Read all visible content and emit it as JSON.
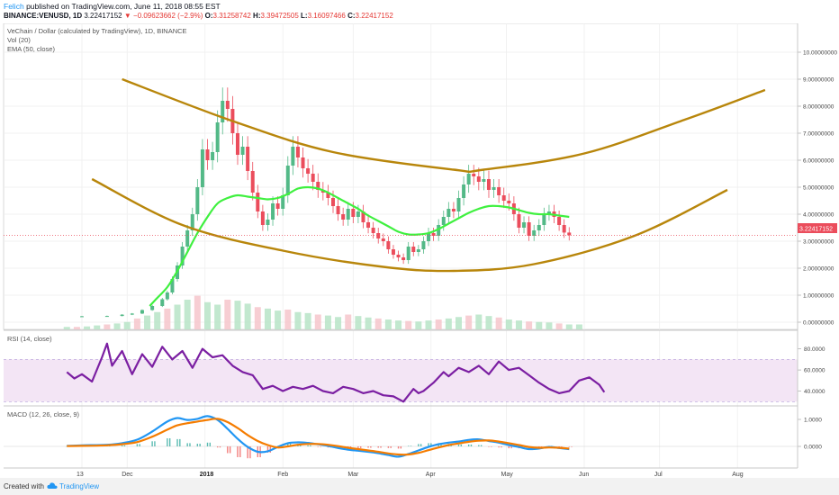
{
  "header": {
    "author": "Felich",
    "published": "published on TradingView.com, June 11, 2018 08:55 EST",
    "symbol": "BINANCE:VENUSD, 1D",
    "last": "3.22417152",
    "change": "−0.09623662 (−2.9%)",
    "o_label": "O:",
    "o_value": "3.31258742",
    "h_label": "H:",
    "h_value": "3.39472505",
    "l_label": "L:",
    "l_value": "3.16097466",
    "c_label": "C:",
    "c_value": "3.22417152"
  },
  "legend": {
    "title": "VeChain / Dollar (calculated by TradingView), 1D, BINANCE",
    "vol": "Vol (20)",
    "ema": "EMA (50, close)",
    "rsi": "RSI (14, close)",
    "macd": "MACD (12, 26, close, 9)"
  },
  "price_label": "3.22417152",
  "footer": {
    "created": "Created with",
    "brand": "TradingView"
  },
  "colors": {
    "up": "#53b987",
    "down": "#eb4d5c",
    "ema": "#3ff03f",
    "channel": "#b8860b",
    "rsi": "#7b1fa2",
    "rsi_band": "#f3e5f5",
    "macd": "#2196f3",
    "signal": "#f57c00",
    "hist_up": "#26a69a",
    "hist_down": "#ef5350"
  },
  "chart_data": [
    {
      "type": "line",
      "panel": "price",
      "y_ticks": [
        "10.00000000",
        "9.00000000",
        "8.00000000",
        "7.00000000",
        "6.00000000",
        "5.00000000",
        "4.00000000",
        "3.00000000",
        "2.00000000",
        "1.00000000",
        "0.00000000"
      ],
      "ylim": [
        0,
        10
      ],
      "x_ticks": [
        {
          "day": 0,
          "label": "13",
          "bold": false
        },
        {
          "day": 18,
          "label": "Dec",
          "bold": false
        },
        {
          "day": 49,
          "label": "2018",
          "bold": true
        },
        {
          "day": 80,
          "label": "Feb",
          "bold": false
        },
        {
          "day": 108,
          "label": "Mar",
          "bold": false
        },
        {
          "day": 139,
          "label": "Apr",
          "bold": false
        },
        {
          "day": 169,
          "label": "May",
          "bold": false
        },
        {
          "day": 200,
          "label": "Jun",
          "bold": false
        },
        {
          "day": 230,
          "label": "Jul",
          "bold": false
        },
        {
          "day": 261,
          "label": "Aug",
          "bold": false
        }
      ],
      "close_series": [
        [
          -6,
          0.22
        ],
        [
          0,
          0.22
        ],
        [
          10,
          0.23
        ],
        [
          16,
          0.28
        ],
        [
          20,
          0.32
        ],
        [
          24,
          0.45
        ],
        [
          28,
          0.6
        ],
        [
          32,
          0.85
        ],
        [
          34,
          1.1
        ],
        [
          36,
          1.6
        ],
        [
          38,
          2.1
        ],
        [
          40,
          2.8
        ],
        [
          42,
          3.4
        ],
        [
          44,
          4.0
        ],
        [
          46,
          5.0
        ],
        [
          48,
          6.4
        ],
        [
          50,
          6.0
        ],
        [
          52,
          6.3
        ],
        [
          54,
          7.4
        ],
        [
          56,
          8.2
        ],
        [
          58,
          7.9
        ],
        [
          60,
          7.0
        ],
        [
          62,
          6.2
        ],
        [
          64,
          6.5
        ],
        [
          66,
          5.6
        ],
        [
          68,
          4.8
        ],
        [
          70,
          4.1
        ],
        [
          72,
          3.6
        ],
        [
          74,
          3.8
        ],
        [
          76,
          4.4
        ],
        [
          78,
          4.2
        ],
        [
          80,
          4.7
        ],
        [
          82,
          5.8
        ],
        [
          84,
          6.5
        ],
        [
          86,
          6.1
        ],
        [
          88,
          5.7
        ],
        [
          90,
          5.5
        ],
        [
          92,
          5.2
        ],
        [
          94,
          4.9
        ],
        [
          96,
          4.8
        ],
        [
          98,
          4.6
        ],
        [
          100,
          4.3
        ],
        [
          102,
          4.0
        ],
        [
          104,
          3.8
        ],
        [
          106,
          4.2
        ],
        [
          108,
          3.9
        ],
        [
          110,
          4.1
        ],
        [
          112,
          3.7
        ],
        [
          114,
          3.5
        ],
        [
          116,
          3.3
        ],
        [
          118,
          3.1
        ],
        [
          120,
          3.0
        ],
        [
          122,
          2.7
        ],
        [
          124,
          2.5
        ],
        [
          126,
          2.4
        ],
        [
          128,
          2.3
        ],
        [
          130,
          2.8
        ],
        [
          132,
          2.6
        ],
        [
          134,
          2.7
        ],
        [
          136,
          3.0
        ],
        [
          138,
          3.3
        ],
        [
          140,
          3.2
        ],
        [
          142,
          3.6
        ],
        [
          144,
          3.9
        ],
        [
          146,
          4.2
        ],
        [
          148,
          4.1
        ],
        [
          150,
          4.6
        ],
        [
          152,
          5.1
        ],
        [
          154,
          5.5
        ],
        [
          156,
          5.4
        ],
        [
          158,
          5.2
        ],
        [
          160,
          5.3
        ],
        [
          162,
          4.9
        ],
        [
          164,
          5.0
        ],
        [
          166,
          4.7
        ],
        [
          168,
          4.5
        ],
        [
          170,
          4.4
        ],
        [
          172,
          4.0
        ],
        [
          174,
          3.5
        ],
        [
          176,
          3.7
        ],
        [
          178,
          3.2
        ],
        [
          180,
          3.4
        ],
        [
          182,
          3.6
        ],
        [
          184,
          4.0
        ],
        [
          186,
          4.1
        ],
        [
          188,
          3.9
        ],
        [
          190,
          3.6
        ],
        [
          192,
          3.32
        ],
        [
          194,
          3.22
        ]
      ],
      "ema_series": [
        [
          27,
          0.6
        ],
        [
          30,
          0.9
        ],
        [
          34,
          1.3
        ],
        [
          38,
          1.9
        ],
        [
          42,
          2.6
        ],
        [
          46,
          3.3
        ],
        [
          50,
          3.9
        ],
        [
          54,
          4.4
        ],
        [
          58,
          4.6
        ],
        [
          62,
          4.7
        ],
        [
          66,
          4.65
        ],
        [
          70,
          4.6
        ],
        [
          74,
          4.55
        ],
        [
          78,
          4.6
        ],
        [
          82,
          4.75
        ],
        [
          86,
          4.95
        ],
        [
          90,
          5.0
        ],
        [
          94,
          4.95
        ],
        [
          98,
          4.8
        ],
        [
          102,
          4.6
        ],
        [
          106,
          4.4
        ],
        [
          110,
          4.2
        ],
        [
          114,
          3.95
        ],
        [
          118,
          3.75
        ],
        [
          122,
          3.55
        ],
        [
          126,
          3.35
        ],
        [
          130,
          3.25
        ],
        [
          134,
          3.25
        ],
        [
          138,
          3.3
        ],
        [
          142,
          3.45
        ],
        [
          146,
          3.65
        ],
        [
          150,
          3.85
        ],
        [
          154,
          4.05
        ],
        [
          158,
          4.2
        ],
        [
          162,
          4.3
        ],
        [
          166,
          4.3
        ],
        [
          170,
          4.25
        ],
        [
          174,
          4.15
        ],
        [
          178,
          4.05
        ],
        [
          182,
          4.0
        ],
        [
          186,
          4.0
        ],
        [
          190,
          3.95
        ],
        [
          194,
          3.9
        ]
      ],
      "channel_upper": [
        [
          16,
          9.0
        ],
        [
          60,
          7.45
        ],
        [
          100,
          6.3
        ],
        [
          148,
          5.65
        ],
        [
          160,
          5.65
        ],
        [
          200,
          6.25
        ],
        [
          240,
          7.5
        ],
        [
          272,
          8.6
        ]
      ],
      "channel_lower": [
        [
          4,
          5.3
        ],
        [
          40,
          3.6
        ],
        [
          80,
          2.65
        ],
        [
          120,
          2.05
        ],
        [
          148,
          1.9
        ],
        [
          180,
          2.15
        ],
        [
          220,
          3.2
        ],
        [
          257,
          4.9
        ]
      ],
      "volume": [
        0.05,
        0.05,
        0.06,
        0.08,
        0.1,
        0.12,
        0.15,
        0.22,
        0.28,
        0.35,
        0.42,
        0.5,
        0.6,
        0.68,
        0.55,
        0.5,
        0.6,
        0.58,
        0.52,
        0.45,
        0.42,
        0.38,
        0.4,
        0.35,
        0.33,
        0.3,
        0.28,
        0.25,
        0.3,
        0.27,
        0.24,
        0.22,
        0.2,
        0.18,
        0.17,
        0.16,
        0.18,
        0.2,
        0.22,
        0.25,
        0.28,
        0.3,
        0.27,
        0.24,
        0.2,
        0.18,
        0.16,
        0.15,
        0.14,
        0.12,
        0.1,
        0.1
      ]
    },
    {
      "type": "line",
      "panel": "rsi",
      "y_ticks": [
        "80.0000",
        "60.0000",
        "40.0000"
      ],
      "ylim": [
        20,
        95
      ],
      "band": [
        30,
        70
      ],
      "series": [
        [
          -6,
          58
        ],
        [
          -3,
          52
        ],
        [
          0,
          56
        ],
        [
          4,
          49
        ],
        [
          8,
          72
        ],
        [
          10,
          85
        ],
        [
          12,
          64
        ],
        [
          16,
          78
        ],
        [
          20,
          56
        ],
        [
          24,
          75
        ],
        [
          28,
          63
        ],
        [
          32,
          82
        ],
        [
          36,
          70
        ],
        [
          40,
          78
        ],
        [
          44,
          62
        ],
        [
          48,
          80
        ],
        [
          52,
          72
        ],
        [
          56,
          74
        ],
        [
          60,
          64
        ],
        [
          64,
          58
        ],
        [
          68,
          55
        ],
        [
          72,
          42
        ],
        [
          76,
          45
        ],
        [
          80,
          40
        ],
        [
          84,
          44
        ],
        [
          88,
          42
        ],
        [
          92,
          45
        ],
        [
          96,
          40
        ],
        [
          100,
          38
        ],
        [
          104,
          44
        ],
        [
          108,
          42
        ],
        [
          112,
          38
        ],
        [
          116,
          40
        ],
        [
          120,
          36
        ],
        [
          124,
          35
        ],
        [
          128,
          30
        ],
        [
          132,
          42
        ],
        [
          134,
          38
        ],
        [
          136,
          40
        ],
        [
          140,
          48
        ],
        [
          144,
          58
        ],
        [
          146,
          54
        ],
        [
          150,
          62
        ],
        [
          154,
          58
        ],
        [
          158,
          64
        ],
        [
          162,
          56
        ],
        [
          166,
          68
        ],
        [
          170,
          60
        ],
        [
          174,
          62
        ],
        [
          178,
          55
        ],
        [
          182,
          48
        ],
        [
          186,
          42
        ],
        [
          190,
          38
        ],
        [
          194,
          40
        ],
        [
          198,
          50
        ],
        [
          202,
          53
        ],
        [
          206,
          46
        ],
        [
          208,
          39
        ]
      ]
    },
    {
      "type": "line",
      "panel": "macd",
      "y_ticks": [
        "1.0000",
        "0.0000"
      ],
      "ylim": [
        -0.55,
        1.5
      ],
      "macd": [
        [
          -6,
          0.02
        ],
        [
          0,
          0.04
        ],
        [
          10,
          0.06
        ],
        [
          16,
          0.12
        ],
        [
          22,
          0.25
        ],
        [
          28,
          0.55
        ],
        [
          34,
          0.92
        ],
        [
          38,
          1.05
        ],
        [
          42,
          0.98
        ],
        [
          46,
          1.02
        ],
        [
          50,
          1.12
        ],
        [
          54,
          0.98
        ],
        [
          58,
          0.65
        ],
        [
          62,
          0.28
        ],
        [
          66,
          -0.02
        ],
        [
          70,
          -0.2
        ],
        [
          74,
          -0.18
        ],
        [
          78,
          -0.02
        ],
        [
          82,
          0.12
        ],
        [
          86,
          0.15
        ],
        [
          90,
          0.13
        ],
        [
          94,
          0.08
        ],
        [
          98,
          0.02
        ],
        [
          102,
          -0.06
        ],
        [
          106,
          -0.12
        ],
        [
          110,
          -0.16
        ],
        [
          114,
          -0.2
        ],
        [
          118,
          -0.25
        ],
        [
          122,
          -0.32
        ],
        [
          126,
          -0.38
        ],
        [
          130,
          -0.28
        ],
        [
          134,
          -0.15
        ],
        [
          138,
          -0.02
        ],
        [
          142,
          0.08
        ],
        [
          146,
          0.14
        ],
        [
          150,
          0.18
        ],
        [
          154,
          0.24
        ],
        [
          158,
          0.26
        ],
        [
          162,
          0.2
        ],
        [
          166,
          0.14
        ],
        [
          170,
          0.05
        ],
        [
          174,
          -0.02
        ],
        [
          178,
          -0.1
        ],
        [
          182,
          -0.08
        ],
        [
          186,
          -0.02
        ],
        [
          190,
          -0.06
        ],
        [
          194,
          -0.1
        ]
      ],
      "signal": [
        [
          -6,
          0.01
        ],
        [
          0,
          0.02
        ],
        [
          10,
          0.04
        ],
        [
          16,
          0.08
        ],
        [
          22,
          0.16
        ],
        [
          28,
          0.36
        ],
        [
          34,
          0.62
        ],
        [
          38,
          0.78
        ],
        [
          42,
          0.86
        ],
        [
          46,
          0.92
        ],
        [
          50,
          0.98
        ],
        [
          54,
          1.02
        ],
        [
          58,
          0.9
        ],
        [
          62,
          0.68
        ],
        [
          66,
          0.42
        ],
        [
          70,
          0.2
        ],
        [
          74,
          0.05
        ],
        [
          78,
          -0.04
        ],
        [
          82,
          0.0
        ],
        [
          86,
          0.06
        ],
        [
          90,
          0.09
        ],
        [
          94,
          0.09
        ],
        [
          98,
          0.06
        ],
        [
          102,
          0.01
        ],
        [
          106,
          -0.05
        ],
        [
          110,
          -0.1
        ],
        [
          114,
          -0.15
        ],
        [
          118,
          -0.2
        ],
        [
          122,
          -0.26
        ],
        [
          126,
          -0.3
        ],
        [
          130,
          -0.3
        ],
        [
          134,
          -0.24
        ],
        [
          138,
          -0.14
        ],
        [
          142,
          -0.04
        ],
        [
          146,
          0.05
        ],
        [
          150,
          0.11
        ],
        [
          154,
          0.17
        ],
        [
          158,
          0.21
        ],
        [
          162,
          0.22
        ],
        [
          166,
          0.18
        ],
        [
          170,
          0.12
        ],
        [
          174,
          0.05
        ],
        [
          178,
          -0.02
        ],
        [
          182,
          -0.05
        ],
        [
          186,
          -0.04
        ],
        [
          190,
          -0.05
        ],
        [
          194,
          -0.08
        ]
      ]
    }
  ]
}
